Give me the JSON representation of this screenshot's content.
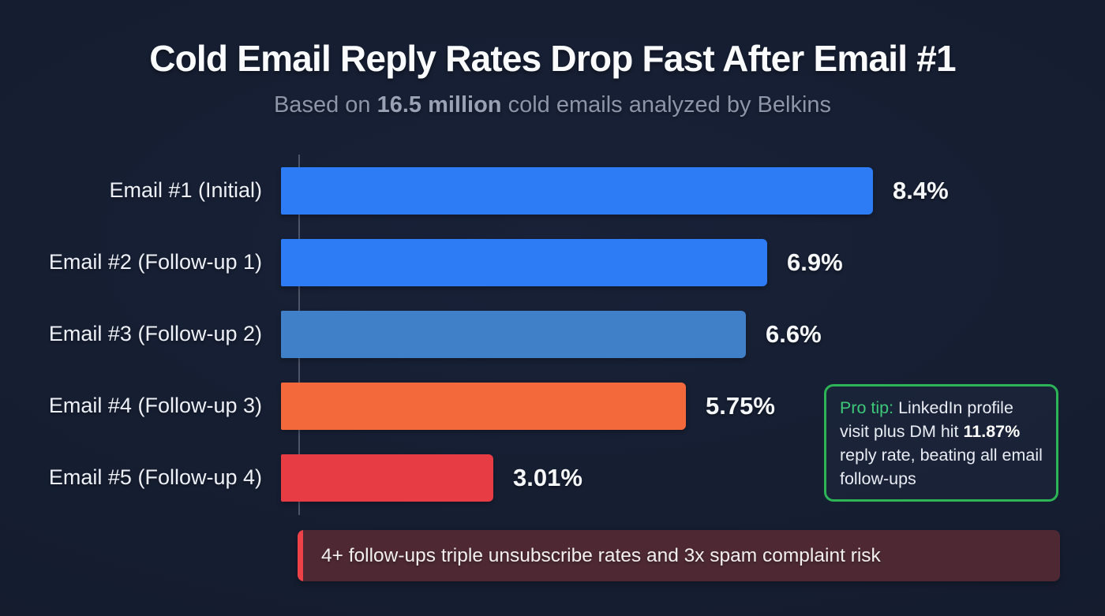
{
  "chart_data": {
    "type": "bar",
    "orientation": "horizontal",
    "title": "Cold Email Reply Rates Drop Fast After Email #1",
    "subtitle_parts": {
      "prefix": "Based on ",
      "highlight": "16.5 million",
      "suffix": " cold emails analyzed by Belkins"
    },
    "categories": [
      "Email #1 (Initial)",
      "Email #2 (Follow-up 1)",
      "Email #3 (Follow-up 2)",
      "Email #4 (Follow-up 3)",
      "Email #5 (Follow-up 4)"
    ],
    "values": [
      8.4,
      6.9,
      6.6,
      5.75,
      3.01
    ],
    "value_labels": [
      "8.4%",
      "6.9%",
      "6.6%",
      "5.75%",
      "3.01%"
    ],
    "bar_colors": [
      "#2e7bf6",
      "#2e7bf6",
      "#3f80c8",
      "#f4693c",
      "#e83c44"
    ],
    "xlim": [
      0,
      8.4
    ],
    "xlabel": "",
    "ylabel": "",
    "grid": false,
    "legend": false,
    "annotations": {
      "pro_tip": {
        "label": "Pro tip:",
        "text_before": " LinkedIn profile visit plus DM hit ",
        "highlight": "11.87%",
        "text_after": " reply rate, beating all email follow-ups"
      },
      "warning_banner": {
        "text": "4+ follow-ups triple unsubscribe rates and 3x spam complaint risk"
      }
    }
  },
  "colors": {
    "background": "#151d30",
    "title": "#fafbfd",
    "subtitle": "#8d95a9",
    "category_label": "#edf0f6",
    "value_label": "#f6f7f9",
    "axis_line": "#4d5568",
    "primary_blue": "#2e7bf6",
    "steel_blue": "#3f80c8",
    "orange": "#f4693c",
    "red": "#e83c44",
    "pro_tip_border": "#2cb457",
    "pro_tip_accent_text": "#3cc878",
    "banner_background": "#4e2933",
    "banner_accent": "#ee4248"
  }
}
